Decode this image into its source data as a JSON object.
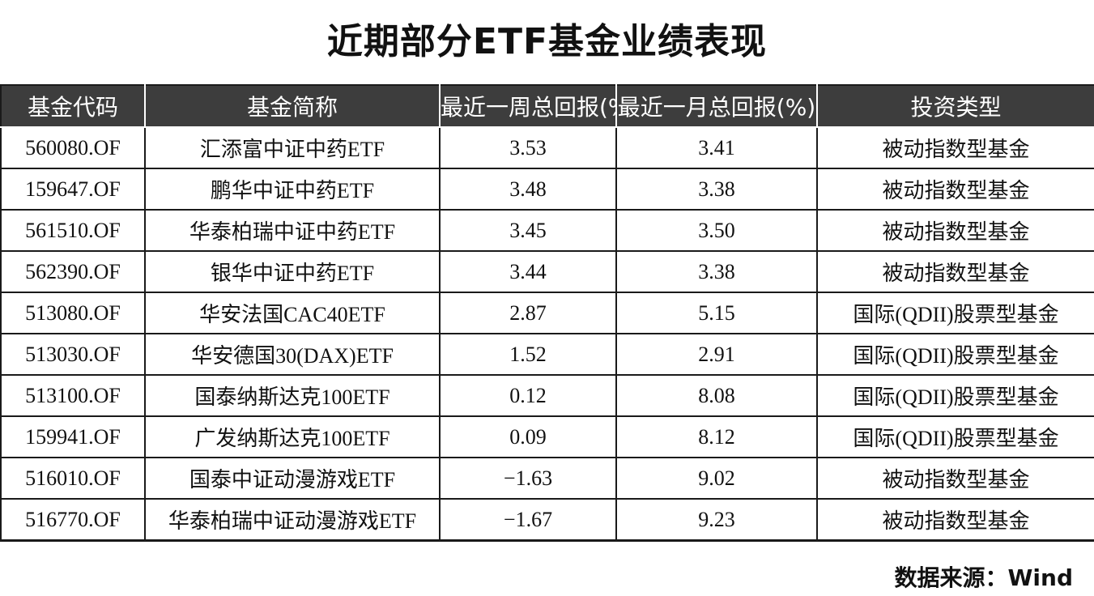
{
  "title": "近期部分ETF基金业绩表现",
  "table": {
    "headers": [
      "基金代码",
      "基金简称",
      "最近一周总回报(%)",
      "最近一月总回报(%)",
      "投资类型"
    ],
    "rows": [
      [
        "560080.OF",
        "汇添富中证中药ETF",
        "3.53",
        "3.41",
        "被动指数型基金"
      ],
      [
        "159647.OF",
        "鹏华中证中药ETF",
        "3.48",
        "3.38",
        "被动指数型基金"
      ],
      [
        "561510.OF",
        "华泰柏瑞中证中药ETF",
        "3.45",
        "3.50",
        "被动指数型基金"
      ],
      [
        "562390.OF",
        "银华中证中药ETF",
        "3.44",
        "3.38",
        "被动指数型基金"
      ],
      [
        "513080.OF",
        "华安法国CAC40ETF",
        "2.87",
        "5.15",
        "国际(QDII)股票型基金"
      ],
      [
        "513030.OF",
        "华安德国30(DAX)ETF",
        "1.52",
        "2.91",
        "国际(QDII)股票型基金"
      ],
      [
        "513100.OF",
        "国泰纳斯达克100ETF",
        "0.12",
        "8.08",
        "国际(QDII)股票型基金"
      ],
      [
        "159941.OF",
        "广发纳斯达克100ETF",
        "0.09",
        "8.12",
        "国际(QDII)股票型基金"
      ],
      [
        "516010.OF",
        "国泰中证动漫游戏ETF",
        "−1.63",
        "9.02",
        "被动指数型基金"
      ],
      [
        "516770.OF",
        "华泰柏瑞中证动漫游戏ETF",
        "−1.67",
        "9.23",
        "被动指数型基金"
      ]
    ]
  },
  "source": "数据来源：Wind"
}
